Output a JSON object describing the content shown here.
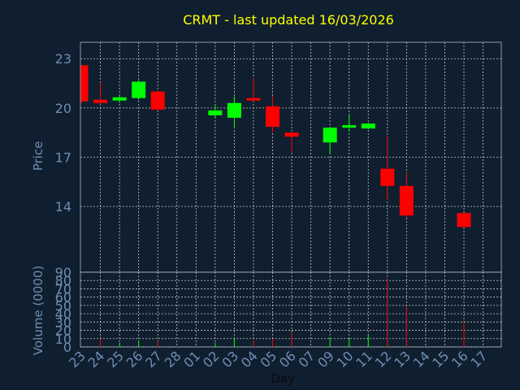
{
  "chart_data": {
    "type": "candlestick",
    "title": "CRMT - last updated 16/03/2026",
    "xlabel": "Day",
    "price_ylabel": "Price",
    "volume_ylabel": "Volume (0000)",
    "price_ylim": [
      10.0,
      24.0
    ],
    "price_ticks": [
      "23",
      "20",
      "17",
      "14"
    ],
    "volume_ylim": [
      0,
      90
    ],
    "volume_ticks": [
      "0",
      "10",
      "20",
      "30",
      "40",
      "50",
      "60",
      "70",
      "80",
      "90"
    ],
    "grid": true,
    "up_color": "#00ff00",
    "down_color": "#ff0000",
    "x_ticks": [
      "23",
      "24",
      "25",
      "26",
      "27",
      "28",
      "01",
      "02",
      "03",
      "04",
      "05",
      "06",
      "07",
      "09",
      "10",
      "11",
      "12",
      "13",
      "14",
      "15",
      "16",
      "17"
    ],
    "candles": [
      {
        "x": 0,
        "open": 22.6,
        "high": 22.6,
        "low": 20.3,
        "close": 20.4,
        "volume": 0
      },
      {
        "x": 1,
        "open": 20.5,
        "high": 21.5,
        "low": 20.2,
        "close": 20.3,
        "volume": 10
      },
      {
        "x": 2,
        "open": 20.45,
        "high": 20.75,
        "low": 20.3,
        "close": 20.65,
        "volume": 5
      },
      {
        "x": 3,
        "open": 20.6,
        "high": 21.7,
        "low": 20.5,
        "close": 21.6,
        "volume": 8
      },
      {
        "x": 4,
        "open": 21.0,
        "high": 21.05,
        "low": 19.85,
        "close": 19.9,
        "volume": 7
      },
      {
        "x": 7,
        "open": 19.55,
        "high": 20.2,
        "low": 19.4,
        "close": 19.85,
        "volume": 5
      },
      {
        "x": 8,
        "open": 19.4,
        "high": 20.7,
        "low": 18.8,
        "close": 20.3,
        "volume": 10
      },
      {
        "x": 9,
        "open": 20.6,
        "high": 21.8,
        "low": 20.4,
        "close": 20.45,
        "volume": 8
      },
      {
        "x": 10,
        "open": 20.1,
        "high": 20.7,
        "low": 18.5,
        "close": 18.85,
        "volume": 10
      },
      {
        "x": 11,
        "open": 18.5,
        "high": 18.5,
        "low": 17.3,
        "close": 18.25,
        "volume": 17
      },
      {
        "x": 13,
        "open": 17.9,
        "high": 18.8,
        "low": 17.2,
        "close": 18.8,
        "volume": 12
      },
      {
        "x": 14,
        "open": 18.8,
        "high": 19.6,
        "low": 18.6,
        "close": 18.95,
        "volume": 10
      },
      {
        "x": 15,
        "open": 18.75,
        "high": 19.1,
        "low": 18.7,
        "close": 19.05,
        "volume": 15
      },
      {
        "x": 16,
        "open": 16.3,
        "high": 18.3,
        "low": 14.4,
        "close": 15.25,
        "volume": 82
      },
      {
        "x": 17,
        "open": 15.25,
        "high": 16.1,
        "low": 13.3,
        "close": 13.45,
        "volume": 48
      },
      {
        "x": 20,
        "open": 13.6,
        "high": 13.6,
        "low": 12.7,
        "close": 12.75,
        "volume": 30
      }
    ]
  }
}
